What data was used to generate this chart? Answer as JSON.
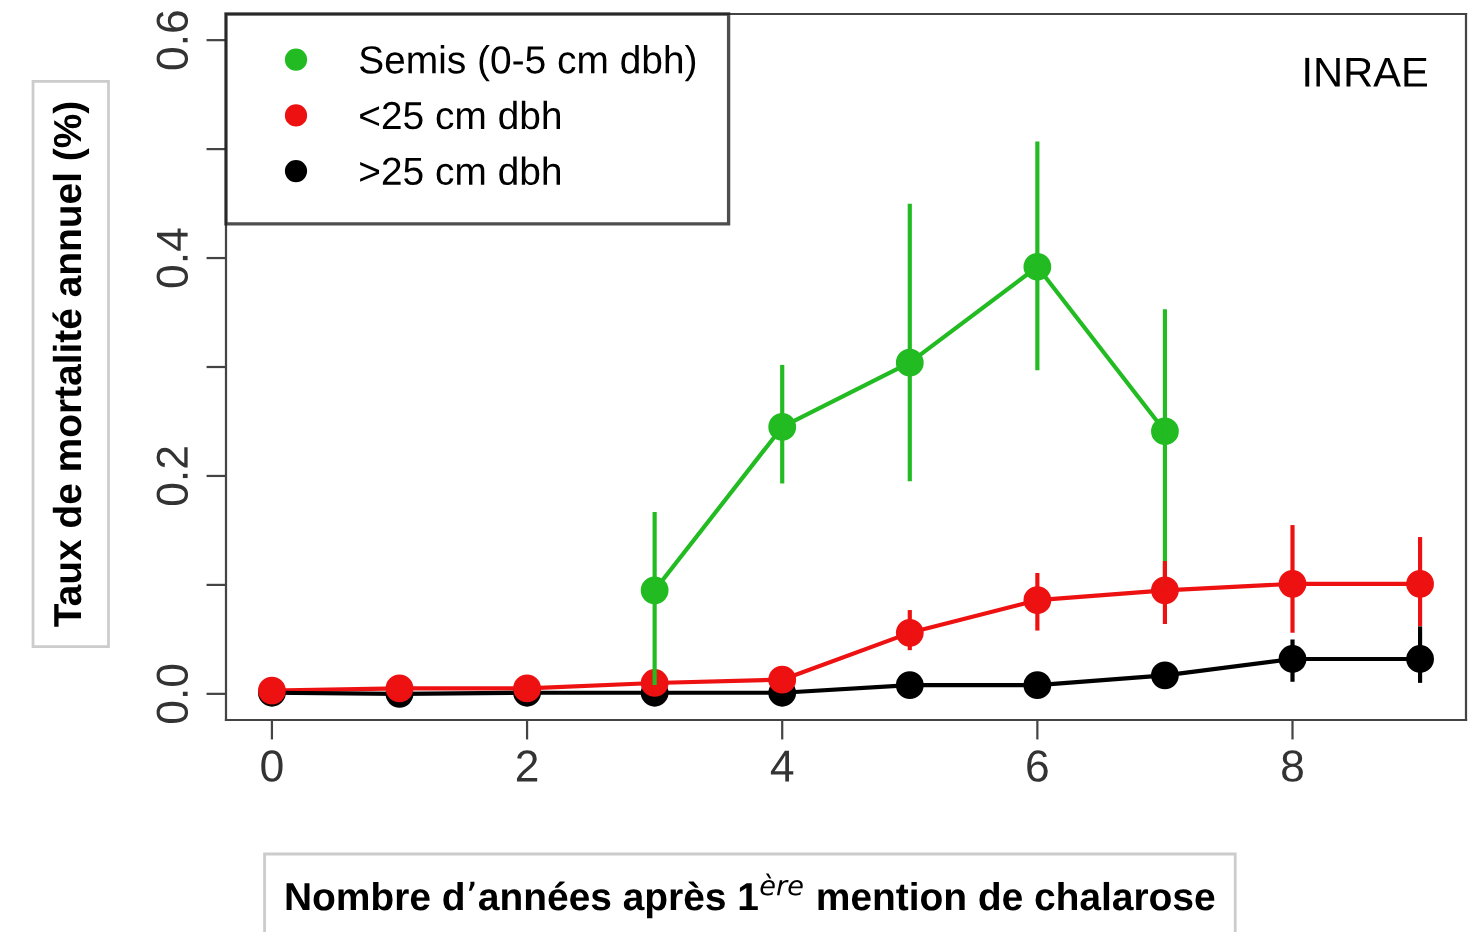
{
  "chart_data": {
    "type": "line",
    "xlabel": "Nombre d’années après 1$^{ère}$ mention de chalarose",
    "ylabel": "Taux de mortalité annuel (%)",
    "annotations": [
      "INRAE"
    ],
    "x": [
      0,
      1,
      2,
      3,
      4,
      5,
      6,
      7,
      8,
      9
    ],
    "xlim": [
      -0.36,
      9.36
    ],
    "xticks": [
      0,
      2,
      4,
      6,
      8
    ],
    "ylim": [
      -0.024,
      0.624
    ],
    "yticks": [
      {
        "value": 0,
        "label": "0.0"
      },
      {
        "value": 0.1,
        "label": null
      },
      0.2,
      {
        "value": 0.3,
        "label": null
      },
      0.4,
      {
        "value": 0.5,
        "label": null
      },
      0.6
    ],
    "marker": "circle",
    "legend": "top left",
    "grid": false,
    "series": [
      {
        "name": "Semis (0-5 cm dbh)",
        "color": "#22bb22",
        "values": [
          null,
          null,
          null,
          0.095,
          0.245,
          0.304,
          0.392,
          0.241,
          null,
          null
        ],
        "errors": [
          null,
          null,
          null,
          [
            0.01,
            0.165
          ],
          [
            0.195,
            0.3
          ],
          [
            0.197,
            0.448
          ],
          [
            0.299,
            0.505
          ],
          [
            0.1,
            0.351
          ],
          null,
          null
        ]
      },
      {
        "name": "<25 cm dbh",
        "color": "#ee1111",
        "values": [
          0.003,
          0.005,
          0.005,
          0.01,
          0.013,
          0.056,
          0.086,
          0.095,
          0.101,
          0.101
        ],
        "errors": [
          null,
          null,
          null,
          null,
          null,
          [
            0.042,
            0.075
          ],
          [
            0.06,
            0.109
          ],
          [
            0.066,
            0.12
          ],
          [
            0.058,
            0.153
          ],
          [
            0.064,
            0.142
          ]
        ]
      },
      {
        "name": ">25 cm dbh",
        "color": "#000000",
        "values": [
          0.001,
          0.0,
          0.001,
          0.001,
          0.001,
          0.008,
          0.008,
          0.017,
          0.032,
          0.032
        ],
        "errors": [
          null,
          null,
          null,
          null,
          null,
          null,
          null,
          null,
          [
            0.013,
            0.048
          ],
          [
            0.012,
            0.06
          ]
        ]
      }
    ]
  }
}
